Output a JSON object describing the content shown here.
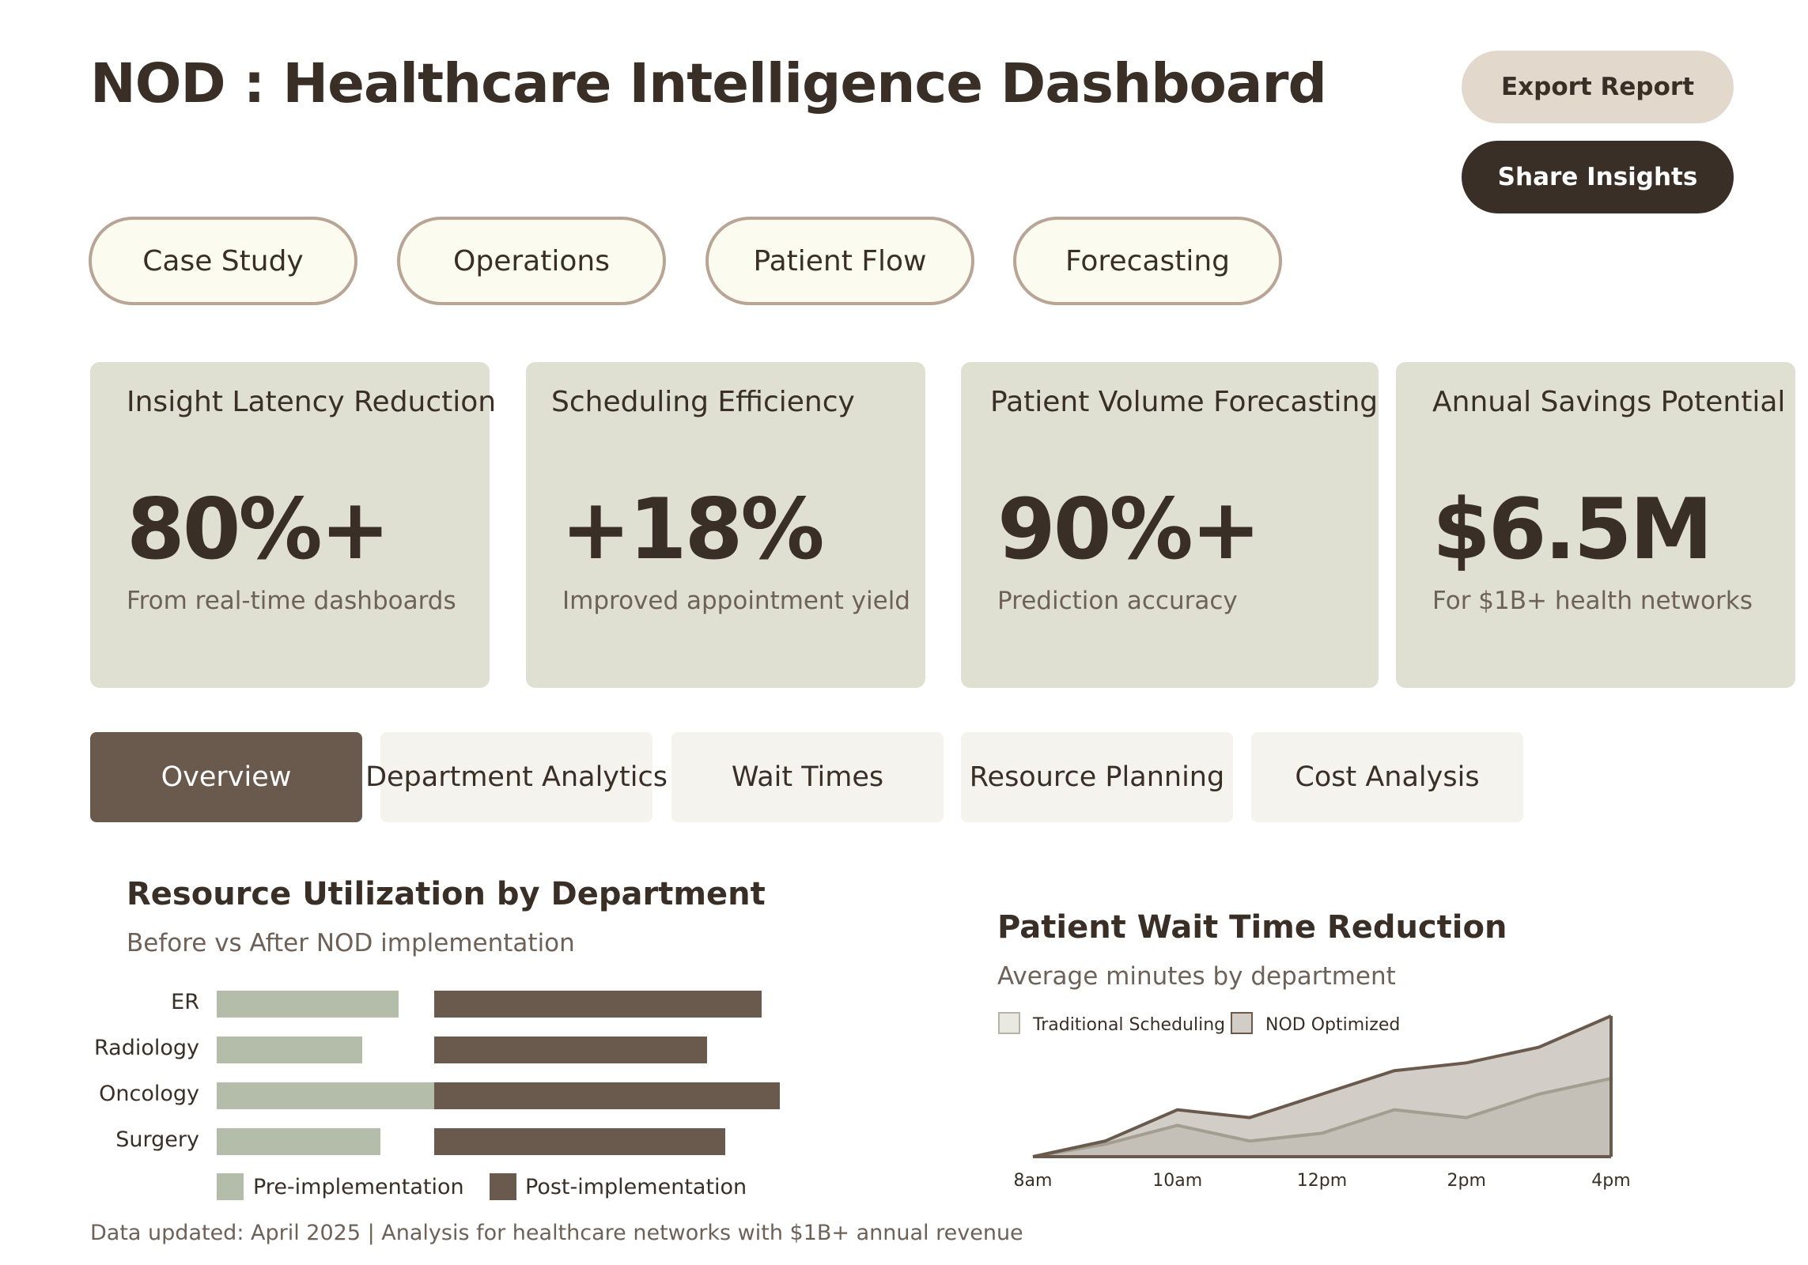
{
  "header": {
    "title": "NOD : Healthcare Intelligence Dashboard",
    "export_label": "Export Report",
    "share_label": "Share Insights"
  },
  "category_pills": [
    "Case Study",
    "Operations",
    "Patient Flow",
    "Forecasting"
  ],
  "metrics": [
    {
      "label": "Insight Latency Reduction",
      "value": "80%+",
      "sub": "From real-time dashboards"
    },
    {
      "label": "Scheduling Efficiency",
      "value": "+18%",
      "sub": "Improved appointment yield"
    },
    {
      "label": "Patient Volume Forecasting",
      "value": "90%+",
      "sub": "Prediction accuracy"
    },
    {
      "label": "Annual Savings Potential",
      "value": "$6.5M",
      "sub": "For $1B+ health networks"
    }
  ],
  "tabs": [
    {
      "label": "Overview",
      "active": true
    },
    {
      "label": "Department Analytics",
      "active": false
    },
    {
      "label": "Wait Times",
      "active": false
    },
    {
      "label": "Resource Planning",
      "active": false
    },
    {
      "label": "Cost Analysis",
      "active": false
    }
  ],
  "colors": {
    "dark": "#3a2f26",
    "brown": "#6a5a4d",
    "sage": "#b4bdaa",
    "card_bg": "#dfdfd2",
    "pill_bg": "#fbfbef"
  },
  "chart_data": [
    {
      "type": "bar",
      "title": "Resource Utilization by Department",
      "subtitle": "Before vs After NOD  implementation",
      "categories": [
        "ER",
        "Radiology",
        "Oncology",
        "Surgery"
      ],
      "series": [
        {
          "name": "Pre-implementation",
          "values": [
            20,
            16,
            24,
            18
          ],
          "color": "#b4bdaa"
        },
        {
          "name": "Post-implementation",
          "values": [
            36,
            30,
            38,
            32
          ],
          "color": "#6a5a4d"
        }
      ]
    },
    {
      "type": "area",
      "title": "Patient Wait Time Reduction",
      "subtitle": "Average minutes by department",
      "x": [
        "8am",
        "9am",
        "10am",
        "11am",
        "12pm",
        "1pm",
        "2pm",
        "3pm",
        "4pm"
      ],
      "tick_labels": [
        "8am",
        "10am",
        "12pm",
        "2pm",
        "4pm"
      ],
      "series": [
        {
          "name": "Traditional Scheduling",
          "values": [
            0,
            8,
            20,
            10,
            15,
            30,
            25,
            40,
            50
          ],
          "color": "#e9e9e2"
        },
        {
          "name": "NOD  Optimized",
          "values": [
            0,
            10,
            30,
            25,
            40,
            55,
            60,
            70,
            90
          ],
          "color": "#d3cdc8"
        }
      ]
    }
  ],
  "footer": "Data updated: April 2025 | Analysis for healthcare networks with $1B+ annual revenue"
}
